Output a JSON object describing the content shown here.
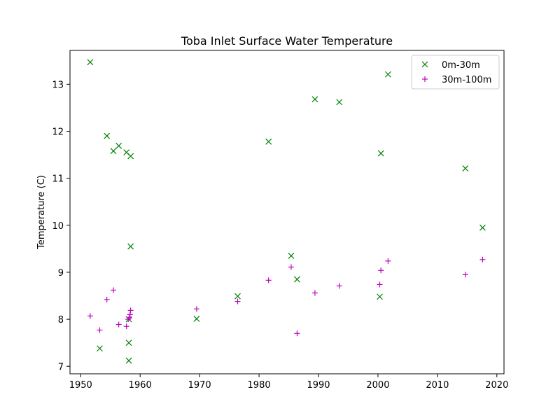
{
  "chart_data": {
    "type": "scatter",
    "title": "Toba Inlet Surface Water Temperature",
    "xlabel": "",
    "ylabel": "Temperature (C)",
    "xlim": [
      1948.2,
      2021.2
    ],
    "ylim": [
      6.84,
      13.72
    ],
    "xticks": [
      1950,
      1960,
      1970,
      1980,
      1990,
      2000,
      2010,
      2020
    ],
    "yticks": [
      7,
      8,
      9,
      10,
      11,
      12,
      13
    ],
    "grid": false,
    "legend_position": "top-right",
    "series": [
      {
        "name": "0m-30m",
        "marker": "x",
        "color": "#008000",
        "x": [
          1951.6,
          1954.4,
          1955.5,
          1956.4,
          1957.7,
          1958.4,
          1958.4,
          1958.1,
          1958.1,
          1958.1,
          1953.2,
          1969.5,
          1976.4,
          1981.6,
          1985.4,
          1986.4,
          1989.4,
          1993.5,
          2000.3,
          2000.5,
          2001.7,
          2014.7,
          2017.6
        ],
        "y": [
          13.47,
          11.9,
          11.58,
          11.69,
          11.55,
          11.47,
          9.55,
          8.0,
          7.5,
          7.12,
          7.38,
          8.01,
          8.49,
          11.78,
          9.35,
          8.85,
          12.68,
          12.62,
          8.48,
          11.53,
          13.21,
          11.21,
          9.95
        ]
      },
      {
        "name": "30m-100m",
        "marker": "+",
        "color": "#bf00bf",
        "x": [
          1951.6,
          1953.2,
          1954.4,
          1955.5,
          1956.4,
          1957.7,
          1958.0,
          1958.2,
          1958.3,
          1958.4,
          1969.5,
          1976.4,
          1981.6,
          1985.4,
          1986.4,
          1989.4,
          1993.5,
          2000.3,
          2000.5,
          2001.7,
          2014.7,
          2017.6
        ],
        "y": [
          8.07,
          7.77,
          8.42,
          8.62,
          7.89,
          7.85,
          8.0,
          8.03,
          8.1,
          8.19,
          8.22,
          8.38,
          8.83,
          9.11,
          7.7,
          8.56,
          8.71,
          8.74,
          9.04,
          9.24,
          8.95,
          9.27
        ]
      }
    ]
  }
}
